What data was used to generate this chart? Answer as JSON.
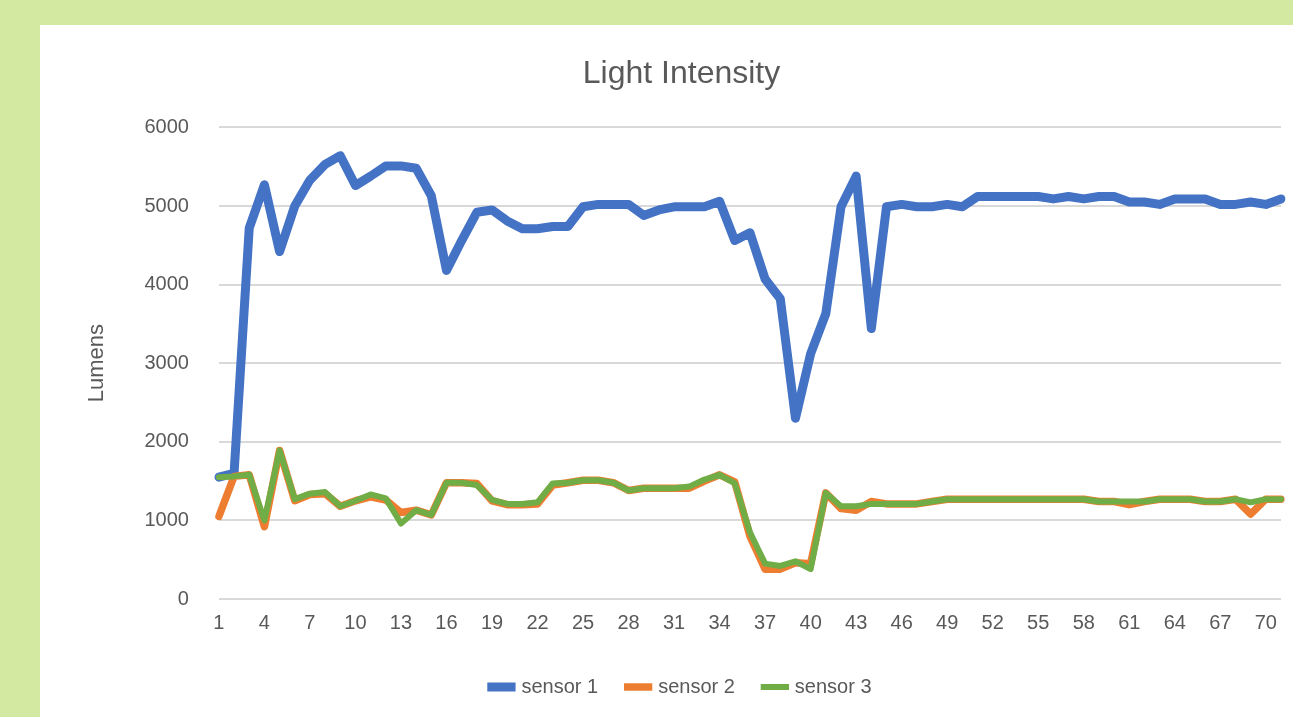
{
  "chart_data": {
    "type": "line",
    "title": "Light Intensity",
    "ylabel": "Lumens",
    "categories": [
      "1",
      null,
      null,
      "4",
      null,
      null,
      "7",
      null,
      null,
      "10",
      null,
      null,
      "13",
      null,
      null,
      "16",
      null,
      null,
      "19",
      null,
      null,
      "22",
      null,
      null,
      "25",
      null,
      null,
      "28",
      null,
      null,
      "31",
      null,
      null,
      "34",
      null,
      null,
      "37",
      null,
      null,
      "40",
      null,
      null,
      "43",
      null,
      null,
      "46",
      null,
      null,
      "49",
      null,
      null,
      "52",
      null,
      null,
      "55",
      null,
      null,
      "58",
      null,
      null,
      "61",
      null,
      null,
      "64",
      null,
      null,
      "67",
      null,
      null,
      "70",
      null
    ],
    "series": [
      {
        "name": "sensor 1",
        "color": "#4472c4",
        "values": [
          1550,
          1600,
          4720,
          5270,
          4420,
          5000,
          5330,
          5530,
          5640,
          5260,
          5380,
          5510,
          5510,
          5480,
          5130,
          4180,
          4560,
          4920,
          4950,
          4810,
          4710,
          4710,
          4740,
          4740,
          4990,
          5020,
          5020,
          5020,
          4880,
          4950,
          4990,
          4990,
          4990,
          5060,
          4560,
          4660,
          4070,
          3820,
          2300,
          3120,
          3630,
          4990,
          5380,
          3440,
          4990,
          5020,
          4990,
          4990,
          5020,
          4990,
          5120,
          5120,
          5120,
          5120,
          5120,
          5090,
          5120,
          5090,
          5120,
          5120,
          5050,
          5050,
          5020,
          5090,
          5090,
          5090,
          5020,
          5020,
          5050,
          5020,
          5090
        ]
      },
      {
        "name": "sensor 2",
        "color": "#ed7d31",
        "values": [
          1050,
          1560,
          1580,
          920,
          1890,
          1250,
          1330,
          1340,
          1180,
          1250,
          1300,
          1260,
          1100,
          1130,
          1070,
          1480,
          1480,
          1470,
          1250,
          1200,
          1200,
          1210,
          1450,
          1480,
          1510,
          1510,
          1480,
          1380,
          1410,
          1410,
          1410,
          1410,
          1500,
          1580,
          1490,
          800,
          380,
          380,
          460,
          450,
          1350,
          1150,
          1130,
          1240,
          1210,
          1210,
          1210,
          1240,
          1270,
          1270,
          1270,
          1270,
          1270,
          1270,
          1270,
          1270,
          1270,
          1270,
          1240,
          1240,
          1200,
          1240,
          1270,
          1270,
          1270,
          1240,
          1240,
          1270,
          1080,
          1270,
          1270
        ]
      },
      {
        "name": "sensor 3",
        "color": "#70ad47",
        "values": [
          1550,
          1560,
          1580,
          1000,
          1890,
          1270,
          1340,
          1360,
          1180,
          1250,
          1330,
          1280,
          960,
          1130,
          1070,
          1480,
          1480,
          1450,
          1260,
          1210,
          1210,
          1230,
          1470,
          1480,
          1510,
          1510,
          1480,
          1380,
          1410,
          1410,
          1410,
          1430,
          1520,
          1580,
          1470,
          850,
          450,
          420,
          480,
          380,
          1350,
          1180,
          1180,
          1210,
          1210,
          1210,
          1210,
          1240,
          1270,
          1270,
          1270,
          1270,
          1270,
          1270,
          1270,
          1270,
          1270,
          1270,
          1240,
          1240,
          1240,
          1240,
          1270,
          1270,
          1270,
          1240,
          1240,
          1270,
          1230,
          1270,
          1270
        ]
      }
    ],
    "ylim": [
      0,
      6000
    ],
    "yticks": [
      0,
      1000,
      2000,
      3000,
      4000,
      5000,
      6000
    ],
    "grid": "y",
    "legend": "bottom",
    "marker": "none",
    "line_style": "solid"
  }
}
